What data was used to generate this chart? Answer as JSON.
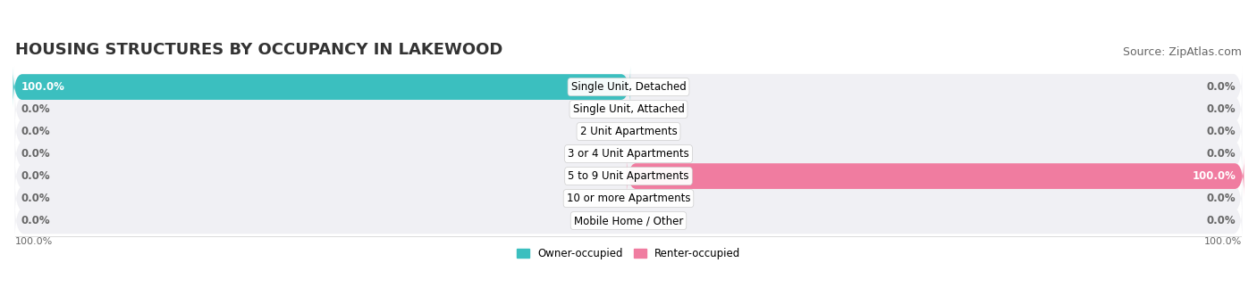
{
  "title": "HOUSING STRUCTURES BY OCCUPANCY IN LAKEWOOD",
  "source": "Source: ZipAtlas.com",
  "categories": [
    "Single Unit, Detached",
    "Single Unit, Attached",
    "2 Unit Apartments",
    "3 or 4 Unit Apartments",
    "5 to 9 Unit Apartments",
    "10 or more Apartments",
    "Mobile Home / Other"
  ],
  "owner_values": [
    100.0,
    0.0,
    0.0,
    0.0,
    0.0,
    0.0,
    0.0
  ],
  "renter_values": [
    0.0,
    0.0,
    0.0,
    0.0,
    100.0,
    0.0,
    0.0
  ],
  "owner_color": "#3bbfbf",
  "renter_color": "#f07ca0",
  "owner_label": "Owner-occupied",
  "renter_label": "Renter-occupied",
  "bg_row_color": "#f0f0f4",
  "center_label_bg": "#ffffff",
  "title_fontsize": 13,
  "source_fontsize": 9,
  "label_fontsize": 8.5,
  "axis_label_fontsize": 8,
  "bar_height": 0.55,
  "xlim": 100
}
